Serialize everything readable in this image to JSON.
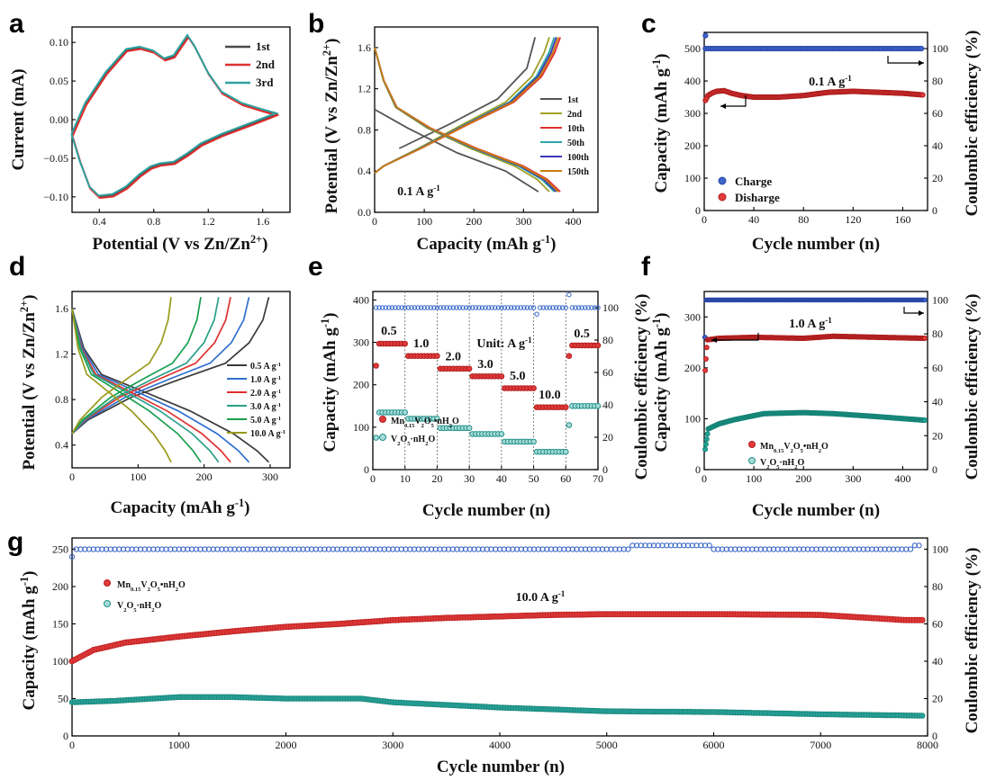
{
  "panel_labels": [
    "a",
    "b",
    "c",
    "d",
    "e",
    "f",
    "g"
  ],
  "chart_data": [
    {
      "panel": "a",
      "type": "line",
      "xlabel": "Potential (V vs Zn/Zn2+)",
      "ylabel": "Current (mA)",
      "xlim": [
        0.2,
        1.8
      ],
      "ylim": [
        -0.12,
        0.12
      ],
      "xticks": [
        "0.4",
        "0.8",
        "1.2",
        "1.6"
      ],
      "yticks": [
        "-0.10",
        "-0.05",
        "0.00",
        "0.05",
        "0.10"
      ],
      "legend": [
        "1st",
        "2nd",
        "3rd"
      ],
      "colors": [
        "#4a4a4a",
        "#e03030",
        "#2fa3a0"
      ],
      "cv_upper": [
        [
          0.2,
          -0.02
        ],
        [
          0.3,
          0.02
        ],
        [
          0.45,
          0.06
        ],
        [
          0.6,
          0.09
        ],
        [
          0.7,
          0.093
        ],
        [
          0.8,
          0.088
        ],
        [
          0.88,
          0.078
        ],
        [
          0.95,
          0.082
        ],
        [
          1.0,
          0.095
        ],
        [
          1.05,
          0.108
        ],
        [
          1.1,
          0.095
        ],
        [
          1.2,
          0.06
        ],
        [
          1.3,
          0.035
        ],
        [
          1.45,
          0.02
        ],
        [
          1.6,
          0.012
        ],
        [
          1.7,
          0.007
        ]
      ],
      "cv_lower": [
        [
          1.7,
          0.007
        ],
        [
          1.6,
          0.0
        ],
        [
          1.45,
          -0.01
        ],
        [
          1.3,
          -0.02
        ],
        [
          1.15,
          -0.032
        ],
        [
          1.05,
          -0.045
        ],
        [
          0.95,
          -0.056
        ],
        [
          0.85,
          -0.058
        ],
        [
          0.78,
          -0.062
        ],
        [
          0.7,
          -0.072
        ],
        [
          0.6,
          -0.088
        ],
        [
          0.5,
          -0.098
        ],
        [
          0.4,
          -0.1
        ],
        [
          0.33,
          -0.088
        ],
        [
          0.26,
          -0.055
        ],
        [
          0.2,
          -0.02
        ]
      ]
    },
    {
      "panel": "b",
      "type": "line",
      "xlabel": "Capacity (mAh g-1)",
      "ylabel": "Potential (V vs Zn/Zn2+)",
      "xlim": [
        0,
        450
      ],
      "ylim": [
        0,
        1.8
      ],
      "xticks": [
        "0",
        "100",
        "200",
        "300",
        "400"
      ],
      "yticks": [
        "0.0",
        "0.4",
        "0.8",
        "1.2",
        "1.6"
      ],
      "annotation": "0.1 A g-1",
      "series": [
        {
          "name": "1st",
          "color": "#555555",
          "cap": 330
        },
        {
          "name": "2nd",
          "color": "#a0a028",
          "cap": 352
        },
        {
          "name": "10th",
          "color": "#e03030",
          "cap": 374
        },
        {
          "name": "50th",
          "color": "#2aa7a7",
          "cap": 362
        },
        {
          "name": "100th",
          "color": "#3a3ab8",
          "cap": 366
        },
        {
          "name": "150th",
          "color": "#c87d10",
          "cap": 370
        }
      ]
    },
    {
      "panel": "c",
      "type": "scatter",
      "xlabel": "Cycle number (n)",
      "ylabel": "Capacity (mAh g-1)",
      "y2label": "Coulombic efficiency (%)",
      "xlim": [
        0,
        180
      ],
      "ylim": [
        0,
        550
      ],
      "y2lim": [
        0,
        110
      ],
      "xticks": [
        "0",
        "40",
        "80",
        "120",
        "160"
      ],
      "yticks": [
        "0",
        "100",
        "200",
        "300",
        "400",
        "500"
      ],
      "y2ticks": [
        "0",
        "20",
        "40",
        "60",
        "80",
        "100"
      ],
      "annotation": "0.1 A g-1",
      "legend": [
        "Charge",
        "Disharge"
      ],
      "capacity_curve": [
        [
          1,
          340
        ],
        [
          3,
          355
        ],
        [
          6,
          362
        ],
        [
          10,
          368
        ],
        [
          16,
          370
        ],
        [
          22,
          362
        ],
        [
          30,
          355
        ],
        [
          40,
          350
        ],
        [
          60,
          350
        ],
        [
          80,
          355
        ],
        [
          100,
          365
        ],
        [
          120,
          368
        ],
        [
          140,
          365
        ],
        [
          160,
          362
        ],
        [
          176,
          357
        ]
      ],
      "ce_value": 100
    },
    {
      "panel": "d",
      "type": "line",
      "xlabel": "Capacity (mAh g-1)",
      "ylabel": "Potential (V vs Zn/Zn2+)",
      "xlim": [
        0,
        330
      ],
      "ylim": [
        0.2,
        1.75
      ],
      "xticks": [
        "0",
        "100",
        "200",
        "300"
      ],
      "yticks": [
        "0.4",
        "0.8",
        "1.2",
        "1.6"
      ],
      "series": [
        {
          "name": "0.5 A g-1",
          "color": "#3a3a3a",
          "cap": 298
        },
        {
          "name": "1.0 A g-1",
          "color": "#2f6fcf",
          "cap": 268
        },
        {
          "name": "2.0 A g-1",
          "color": "#e03030",
          "cap": 240
        },
        {
          "name": "3.0 A g-1",
          "color": "#2aa08a",
          "cap": 222
        },
        {
          "name": "5.0 A g-1",
          "color": "#1aa050",
          "cap": 195
        },
        {
          "name": "10.0 A g-1",
          "color": "#9a9a1a",
          "cap": 150
        }
      ]
    },
    {
      "panel": "e",
      "type": "scatter",
      "xlabel": "Cycle number (n)",
      "ylabel": "Capacity (mAh g-1)",
      "y2label": "Coulombic efficiency (%)",
      "xlim": [
        0,
        70
      ],
      "ylim": [
        0,
        420
      ],
      "y2lim": [
        0,
        110
      ],
      "xticks": [
        "0",
        "10",
        "20",
        "30",
        "40",
        "50",
        "60",
        "70"
      ],
      "yticks": [
        "0",
        "100",
        "200",
        "300",
        "400"
      ],
      "y2ticks": [
        "0",
        "20",
        "40",
        "60",
        "80",
        "100"
      ],
      "annotation": "Unit: A g-1",
      "rate_labels": [
        "0.5",
        "1.0",
        "2.0",
        "3.0",
        "5.0",
        "10.0",
        "0.5"
      ],
      "mn_levels": [
        297,
        268,
        238,
        220,
        192,
        147,
        293
      ],
      "vo_levels": [
        135,
        120,
        98,
        84,
        66,
        42,
        150
      ],
      "legend": [
        "Mn0.15V2O5•nH2O",
        "V2O5·nH2O"
      ]
    },
    {
      "panel": "f",
      "type": "scatter",
      "xlabel": "Cycle number (n)",
      "ylabel": "Capacity (mAh g-1)",
      "y2label": "Coulombic efficiency (%)",
      "xlim": [
        0,
        450
      ],
      "ylim": [
        0,
        350
      ],
      "y2lim": [
        0,
        105
      ],
      "xticks": [
        "0",
        "100",
        "200",
        "300",
        "400"
      ],
      "yticks": [
        "0",
        "100",
        "200",
        "300"
      ],
      "y2ticks": [
        "0",
        "20",
        "40",
        "60",
        "80",
        "100"
      ],
      "annotation": "1.0 A g-1",
      "legend": [
        "Mn0.15V2O5•nH2O",
        "V2O5·nH2O"
      ],
      "mn_curve": [
        [
          2,
          195
        ],
        [
          6,
          255
        ],
        [
          30,
          258
        ],
        [
          100,
          260
        ],
        [
          200,
          258
        ],
        [
          260,
          262
        ],
        [
          350,
          260
        ],
        [
          445,
          258
        ]
      ],
      "vo_curve": [
        [
          2,
          40
        ],
        [
          8,
          80
        ],
        [
          30,
          90
        ],
        [
          60,
          98
        ],
        [
          120,
          110
        ],
        [
          200,
          112
        ],
        [
          260,
          110
        ],
        [
          350,
          104
        ],
        [
          445,
          97
        ]
      ]
    },
    {
      "panel": "g",
      "type": "scatter",
      "xlabel": "Cycle number (n)",
      "ylabel": "Capacity (mAh g-1)",
      "y2label": "Coulombic efficiency (%)",
      "xlim": [
        0,
        8000
      ],
      "ylim": [
        0,
        265
      ],
      "y2lim": [
        0,
        106
      ],
      "xticks": [
        "0",
        "1000",
        "2000",
        "3000",
        "4000",
        "5000",
        "6000",
        "7000",
        "8000"
      ],
      "yticks": [
        "0",
        "50",
        "100",
        "150",
        "200",
        "250"
      ],
      "y2ticks": [
        "0",
        "20",
        "40",
        "60",
        "80",
        "100"
      ],
      "annotation": "10.0 A g-1",
      "legend": [
        "Mn0.15V2O5•nH2O",
        "V2O5·nH2O"
      ],
      "mn_curve": [
        [
          0,
          100
        ],
        [
          200,
          115
        ],
        [
          500,
          125
        ],
        [
          1000,
          133
        ],
        [
          1500,
          140
        ],
        [
          2000,
          146
        ],
        [
          2500,
          150
        ],
        [
          3000,
          155
        ],
        [
          3500,
          158
        ],
        [
          4000,
          160
        ],
        [
          4500,
          162
        ],
        [
          5000,
          163
        ],
        [
          6000,
          163
        ],
        [
          7000,
          162
        ],
        [
          7800,
          155
        ]
      ],
      "vo_curve": [
        [
          0,
          45
        ],
        [
          400,
          47
        ],
        [
          1000,
          52
        ],
        [
          1500,
          52
        ],
        [
          2000,
          50
        ],
        [
          2700,
          50
        ],
        [
          3000,
          45
        ],
        [
          4000,
          38
        ],
        [
          5000,
          33
        ],
        [
          6000,
          32
        ],
        [
          7000,
          29
        ],
        [
          8000,
          27
        ]
      ]
    }
  ]
}
